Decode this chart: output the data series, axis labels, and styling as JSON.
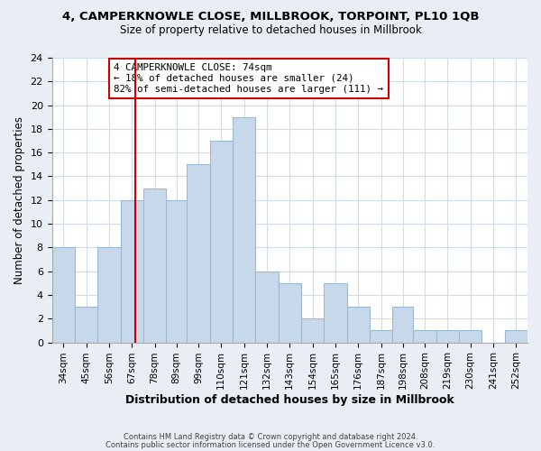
{
  "title": "4, CAMPERKNOWLE CLOSE, MILLBROOK, TORPOINT, PL10 1QB",
  "subtitle": "Size of property relative to detached houses in Millbrook",
  "xlabel": "Distribution of detached houses by size in Millbrook",
  "ylabel": "Number of detached properties",
  "bar_color": "#c8d8eb",
  "bar_edge_color": "#9ab8d0",
  "bin_labels": [
    "34sqm",
    "45sqm",
    "56sqm",
    "67sqm",
    "78sqm",
    "89sqm",
    "99sqm",
    "110sqm",
    "121sqm",
    "132sqm",
    "143sqm",
    "154sqm",
    "165sqm",
    "176sqm",
    "187sqm",
    "198sqm",
    "208sqm",
    "219sqm",
    "230sqm",
    "241sqm",
    "252sqm"
  ],
  "values": [
    8,
    3,
    8,
    12,
    13,
    12,
    15,
    17,
    19,
    6,
    5,
    2,
    5,
    3,
    1,
    3,
    1,
    1,
    1,
    0,
    1
  ],
  "bin_edges": [
    34,
    45,
    56,
    67,
    78,
    89,
    99,
    110,
    121,
    132,
    143,
    154,
    165,
    176,
    187,
    198,
    208,
    219,
    230,
    241,
    252,
    263
  ],
  "vline_x": 74,
  "vline_color": "#cc0000",
  "annotation_text": "4 CAMPERKNOWLE CLOSE: 74sqm\n← 18% of detached houses are smaller (24)\n82% of semi-detached houses are larger (111) →",
  "annotation_box_color": "#ffffff",
  "annotation_box_edge_color": "#cc0000",
  "ylim": [
    0,
    24
  ],
  "yticks": [
    0,
    2,
    4,
    6,
    8,
    10,
    12,
    14,
    16,
    18,
    20,
    22,
    24
  ],
  "plot_bg": "#ffffff",
  "fig_bg": "#e8eef4",
  "grid_color": "#d0dce8",
  "footer_line1": "Contains HM Land Registry data © Crown copyright and database right 2024.",
  "footer_line2": "Contains public sector information licensed under the Open Government Licence v3.0."
}
